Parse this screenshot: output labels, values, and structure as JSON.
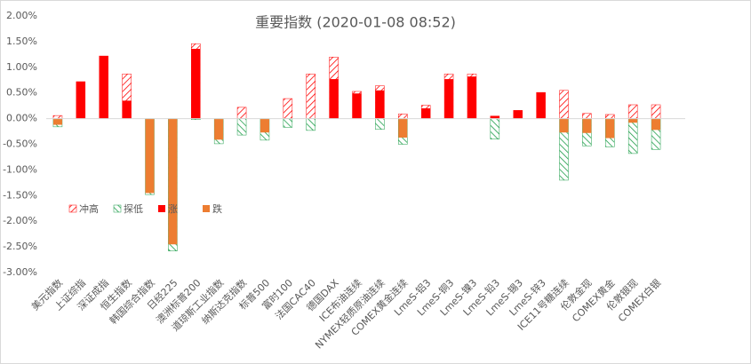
{
  "chart_data": {
    "type": "bar",
    "title": "重要指数 (2020-01-08 08:52)",
    "categories": [
      "美元指数",
      "上证综指",
      "深证成指",
      "恒生指数",
      "韩国综合指数",
      "日经225",
      "澳洲标普200",
      "道琼斯工业指数",
      "纳斯达克指数",
      "标普500",
      "富时100",
      "法国CAC40",
      "德国DAX",
      "ICE布油连续",
      "NYMEX轻质原油连续",
      "COMEX黄金连续",
      "LmeS-铝3",
      "LmeS-铜3",
      "LmeS-镍3",
      "LmeS-铅3",
      "LmeS-锡3",
      "LmeS-锌3",
      "ICE11号糖连续",
      "伦敦金现",
      "COMEX黄金",
      "伦敦银现",
      "COMEX白银"
    ],
    "series": [
      {
        "name": "冲高",
        "color": "#ff0000",
        "pattern": "hatch-forward",
        "values": [
          0.06,
          0.72,
          1.22,
          0.87,
          null,
          null,
          1.46,
          null,
          0.22,
          null,
          0.39,
          0.87,
          1.2,
          0.53,
          0.64,
          0.09,
          0.26,
          0.87,
          0.87,
          0.05,
          0.16,
          0.51,
          0.55,
          0.1,
          0.08,
          0.27,
          0.27
        ]
      },
      {
        "name": "探低",
        "color": "#1e9e4a",
        "pattern": "hatch-back",
        "values": [
          -0.16,
          null,
          null,
          null,
          -1.48,
          -2.58,
          -0.02,
          -0.49,
          -0.32,
          -0.42,
          -0.17,
          -0.23,
          null,
          null,
          -0.21,
          -0.5,
          null,
          null,
          null,
          -0.4,
          null,
          null,
          -1.2,
          -0.53,
          -0.55,
          -0.68,
          -0.6
        ]
      },
      {
        "name": "涨",
        "color": "#ff0000",
        "pattern": "solid",
        "values": [
          null,
          0.72,
          1.22,
          0.35,
          null,
          null,
          1.36,
          null,
          null,
          null,
          null,
          null,
          0.77,
          0.49,
          0.55,
          null,
          0.2,
          0.77,
          0.82,
          0.05,
          0.16,
          0.51,
          null,
          null,
          null,
          null,
          null
        ]
      },
      {
        "name": "跌",
        "color": "#ed7d31",
        "pattern": "solid",
        "values": [
          -0.12,
          null,
          null,
          null,
          -1.45,
          -2.45,
          null,
          -0.41,
          null,
          -0.27,
          null,
          null,
          null,
          null,
          null,
          -0.37,
          null,
          null,
          null,
          null,
          null,
          null,
          -0.27,
          -0.28,
          -0.38,
          -0.08,
          -0.22
        ]
      }
    ],
    "ylim": [
      -3,
      2
    ],
    "yticks": [
      {
        "value": -3,
        "label": "-3.00%"
      },
      {
        "value": -2.5,
        "label": "-2.50%"
      },
      {
        "value": -2,
        "label": "-2.00%"
      },
      {
        "value": -1.5,
        "label": "-1.50%"
      },
      {
        "value": -1,
        "label": "-1.00%"
      },
      {
        "value": -0.5,
        "label": "-0.50%"
      },
      {
        "value": 0,
        "label": "0.00%"
      },
      {
        "value": 0.5,
        "label": "0.50%"
      },
      {
        "value": 1,
        "label": "1.00%"
      },
      {
        "value": 1.5,
        "label": "1.50%"
      },
      {
        "value": 2,
        "label": "2.00%"
      }
    ],
    "grid": false,
    "legend": "left"
  }
}
